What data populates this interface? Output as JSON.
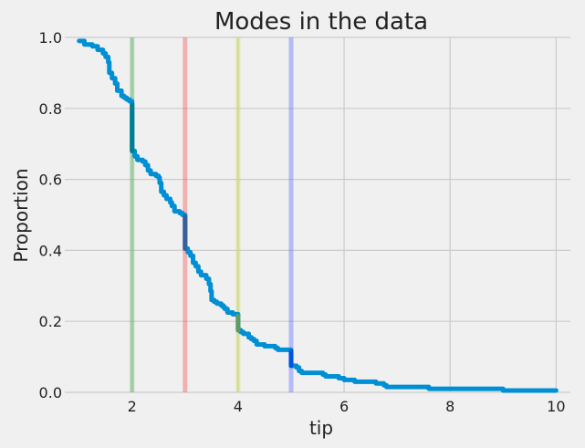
{
  "chart_data": {
    "type": "line",
    "title": "Modes in the data",
    "xlabel": "tip",
    "ylabel": "Proportion",
    "xlim": [
      0.73,
      10.27
    ],
    "ylim": [
      0,
      1
    ],
    "x_ticks": [
      2,
      4,
      6,
      8,
      10
    ],
    "x_tick_labels": [
      "2",
      "4",
      "6",
      "8",
      "10"
    ],
    "y_ticks": [
      0,
      0.2,
      0.4,
      0.6,
      0.8,
      1.0
    ],
    "y_tick_labels": [
      "0.0",
      "0.2",
      "0.4",
      "0.6",
      "0.8",
      "1.0"
    ],
    "grid": true,
    "series": [
      {
        "color": "#008fd5",
        "points": [
          [
            1.0,
            0.99
          ],
          [
            1.1,
            0.98
          ],
          [
            1.25,
            0.975
          ],
          [
            1.35,
            0.965
          ],
          [
            1.45,
            0.955
          ],
          [
            1.5,
            0.945
          ],
          [
            1.55,
            0.93
          ],
          [
            1.57,
            0.9
          ],
          [
            1.62,
            0.885
          ],
          [
            1.68,
            0.87
          ],
          [
            1.72,
            0.85
          ],
          [
            1.8,
            0.835
          ],
          [
            1.85,
            0.83
          ],
          [
            1.9,
            0.825
          ],
          [
            1.95,
            0.82
          ],
          [
            2.0,
            0.81
          ],
          [
            2.0,
            0.68
          ],
          [
            2.05,
            0.665
          ],
          [
            2.1,
            0.655
          ],
          [
            2.2,
            0.65
          ],
          [
            2.25,
            0.64
          ],
          [
            2.3,
            0.625
          ],
          [
            2.35,
            0.615
          ],
          [
            2.45,
            0.61
          ],
          [
            2.5,
            0.605
          ],
          [
            2.52,
            0.59
          ],
          [
            2.55,
            0.565
          ],
          [
            2.6,
            0.555
          ],
          [
            2.65,
            0.545
          ],
          [
            2.72,
            0.535
          ],
          [
            2.75,
            0.525
          ],
          [
            2.8,
            0.51
          ],
          [
            2.9,
            0.505
          ],
          [
            2.95,
            0.5
          ],
          [
            3.0,
            0.495
          ],
          [
            3.0,
            0.405
          ],
          [
            3.05,
            0.395
          ],
          [
            3.1,
            0.385
          ],
          [
            3.15,
            0.365
          ],
          [
            3.2,
            0.355
          ],
          [
            3.25,
            0.34
          ],
          [
            3.3,
            0.33
          ],
          [
            3.4,
            0.32
          ],
          [
            3.45,
            0.305
          ],
          [
            3.48,
            0.285
          ],
          [
            3.5,
            0.26
          ],
          [
            3.55,
            0.255
          ],
          [
            3.6,
            0.25
          ],
          [
            3.68,
            0.245
          ],
          [
            3.72,
            0.24
          ],
          [
            3.75,
            0.235
          ],
          [
            3.8,
            0.225
          ],
          [
            3.9,
            0.22
          ],
          [
            4.0,
            0.215
          ],
          [
            4.0,
            0.175
          ],
          [
            4.05,
            0.17
          ],
          [
            4.1,
            0.165
          ],
          [
            4.2,
            0.155
          ],
          [
            4.25,
            0.15
          ],
          [
            4.3,
            0.145
          ],
          [
            4.35,
            0.135
          ],
          [
            4.5,
            0.13
          ],
          [
            4.7,
            0.125
          ],
          [
            4.75,
            0.12
          ],
          [
            5.0,
            0.115
          ],
          [
            5.0,
            0.075
          ],
          [
            5.1,
            0.07
          ],
          [
            5.15,
            0.06
          ],
          [
            5.2,
            0.055
          ],
          [
            5.6,
            0.05
          ],
          [
            5.65,
            0.045
          ],
          [
            5.9,
            0.04
          ],
          [
            6.0,
            0.035
          ],
          [
            6.2,
            0.03
          ],
          [
            6.5,
            0.03
          ],
          [
            6.6,
            0.025
          ],
          [
            6.75,
            0.02
          ],
          [
            6.8,
            0.015
          ],
          [
            7.5,
            0.015
          ],
          [
            7.6,
            0.01
          ],
          [
            9.0,
            0.01
          ],
          [
            9.0,
            0.005
          ],
          [
            10.0,
            0.005
          ]
        ]
      }
    ],
    "mode_lines": [
      {
        "x": 2.0,
        "color": "#4caf50"
      },
      {
        "x": 3.0,
        "color": "#ef5350"
      },
      {
        "x": 4.0,
        "color": "#cddc39"
      },
      {
        "x": 5.0,
        "color": "#5c6bff"
      }
    ],
    "highlight_segments": [
      {
        "x": 2.0,
        "y_from": 0.68,
        "y_to": 0.81,
        "color": "#00808f"
      },
      {
        "x": 3.0,
        "y_from": 0.405,
        "y_to": 0.495,
        "color": "#3a5e9a"
      },
      {
        "x": 4.0,
        "y_from": 0.175,
        "y_to": 0.215,
        "color": "#5e9a64"
      },
      {
        "x": 5.0,
        "y_from": 0.075,
        "y_to": 0.115,
        "color": "#0055e0"
      }
    ]
  }
}
